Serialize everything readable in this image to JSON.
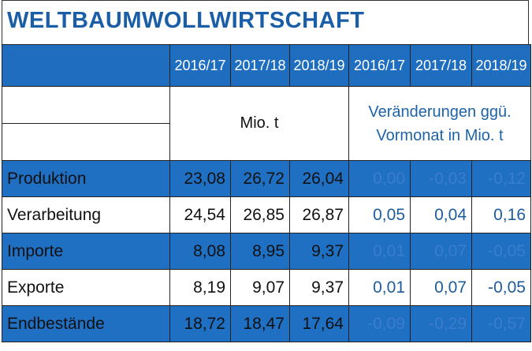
{
  "title": "WELTBAUMWOLLWIRTSCHAFT",
  "table": {
    "header": [
      "2016/17",
      "2017/18",
      "2018/19",
      "2016/17",
      "2017/18",
      "2018/19"
    ],
    "unit_left": "Mio. t",
    "unit_right": "Veränderungen ggü. Vormonat in Mio. t",
    "rows": [
      [
        "Produktion",
        "23,08",
        "26,72",
        "26,04",
        "0,00",
        "-0,03",
        "-0,12"
      ],
      [
        "Verarbeitung",
        "24,54",
        "26,85",
        "26,87",
        "0,05",
        "0,04",
        "0,16"
      ],
      [
        "Importe",
        "8,08",
        "8,95",
        "9,37",
        "0,01",
        "0,07",
        "-0,05"
      ],
      [
        "Exporte",
        "8,19",
        "9,07",
        "9,37",
        "0,01",
        "0,07",
        "-0,05"
      ],
      [
        "Endbestände",
        "18,72",
        "18,47",
        "17,64",
        "-0,09",
        "-0,29",
        "-0,57"
      ]
    ]
  }
}
